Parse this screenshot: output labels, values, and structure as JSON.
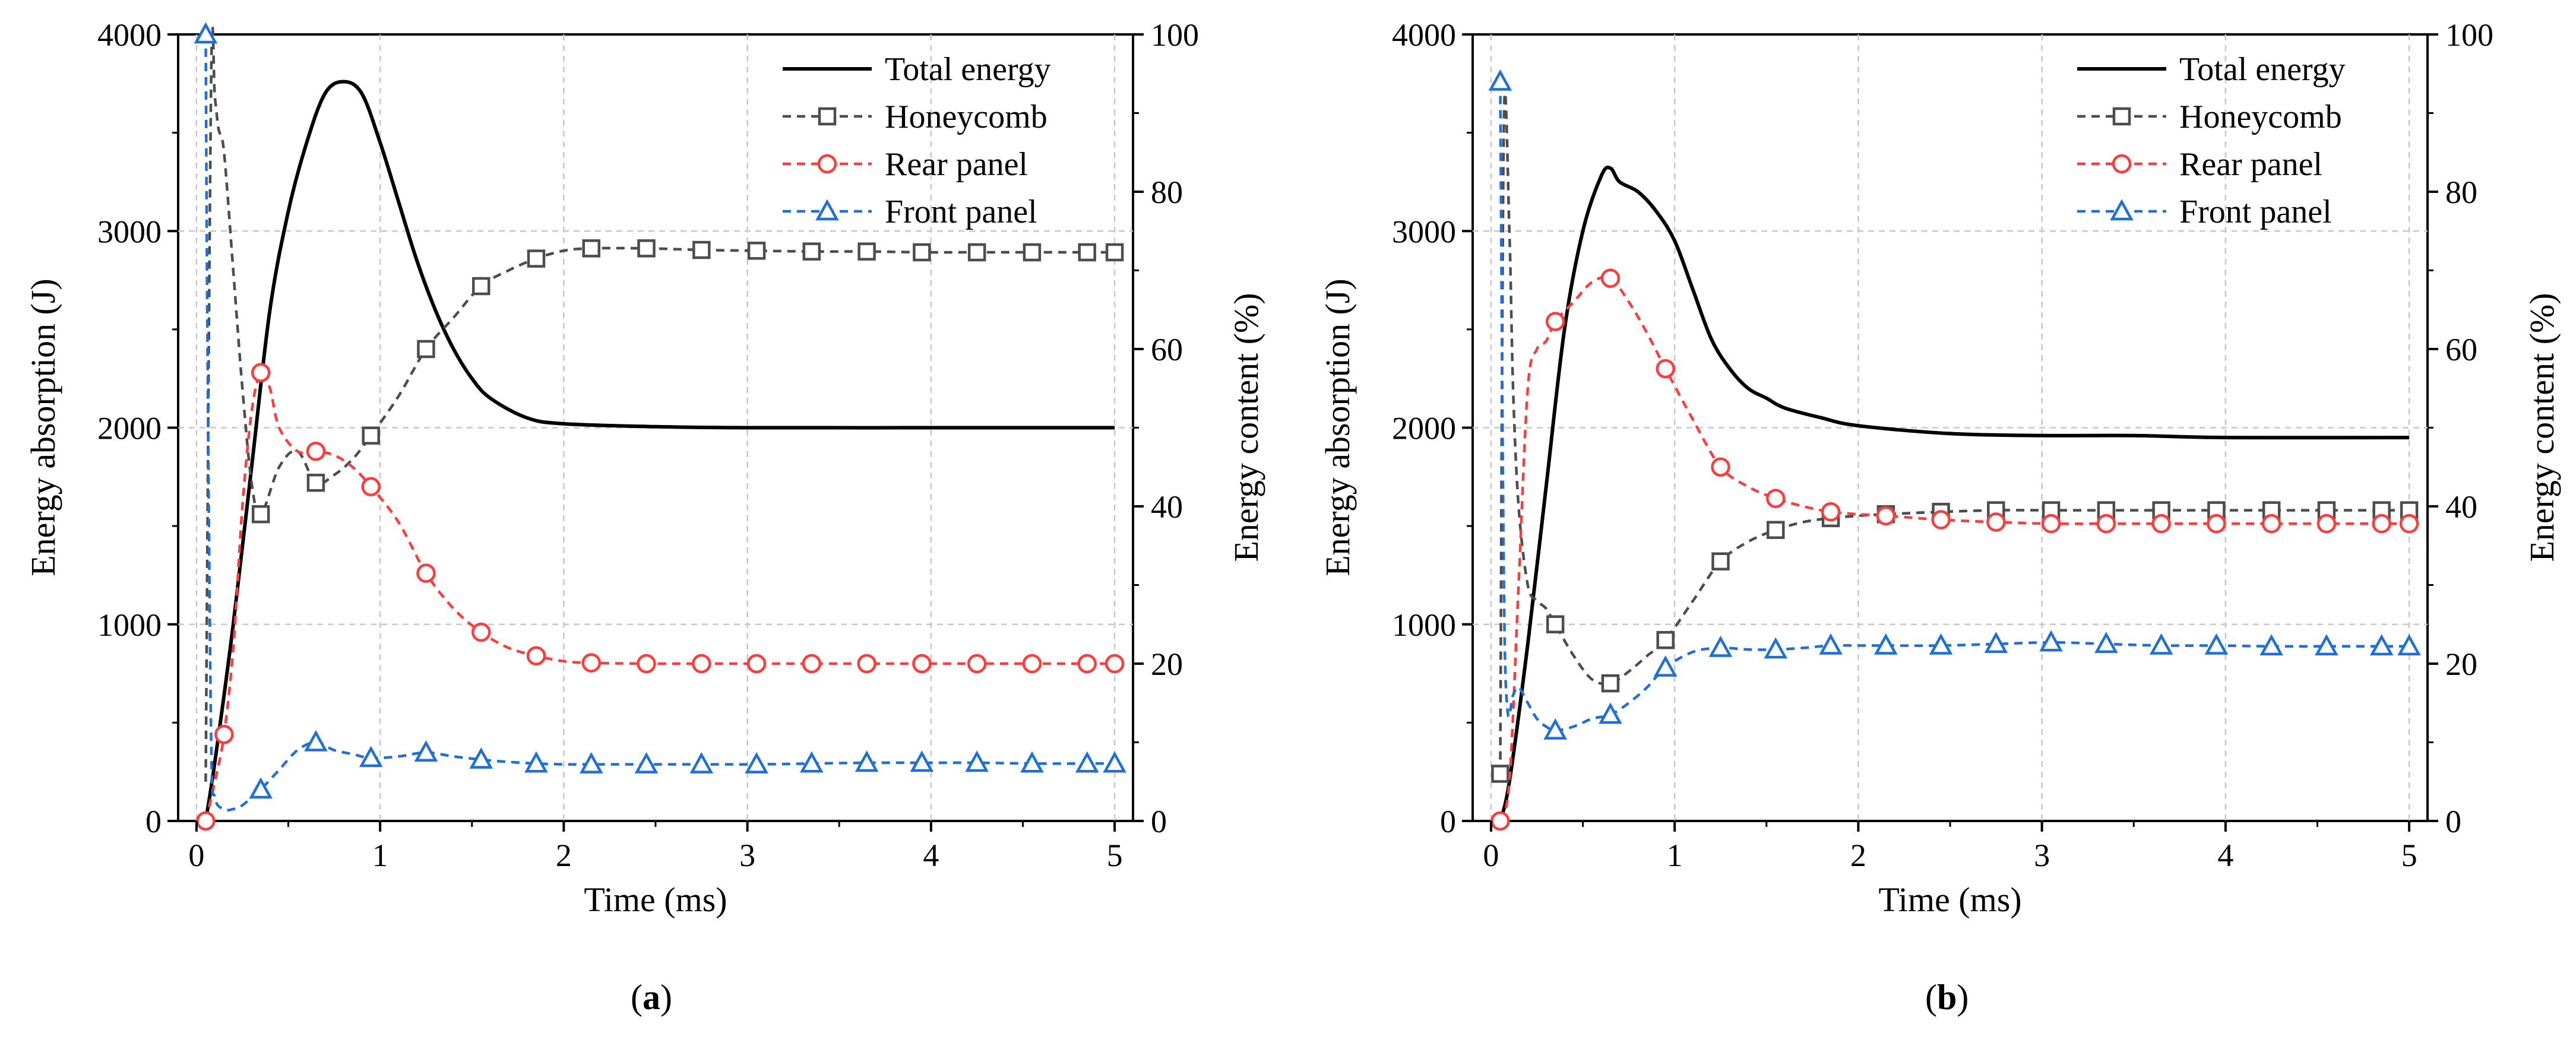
{
  "figure": {
    "panels": [
      {
        "label": "(a)",
        "label_letter": "a",
        "legend_position": "top-right"
      },
      {
        "label": "(b)",
        "label_letter": "b",
        "legend_position": "top-right"
      }
    ]
  },
  "colors": {
    "total": "#000000",
    "honeycomb": "#4d4d4d",
    "rear": "#ff3b3b",
    "front": "#1f6fd8",
    "grid": "#c8c8c8",
    "axis": "#000000"
  },
  "chart_data": [
    {
      "type": "line",
      "title": "",
      "xlabel": "Time (ms)",
      "ylabel": "Energy absorption (J)",
      "ylabel_right": "Energy content (%)",
      "xlim": [
        -0.1,
        5.1
      ],
      "ylim": [
        0,
        4000
      ],
      "ylim_right": [
        0,
        100
      ],
      "xticks": [
        "0",
        "1",
        "2",
        "3",
        "4",
        "5"
      ],
      "yticks": [
        "0",
        "1000",
        "2000",
        "3000",
        "4000"
      ],
      "yticks_right": [
        "0",
        "20",
        "40",
        "60",
        "80",
        "100"
      ],
      "grid": true,
      "legend": [
        "Total energy",
        "Honeycomb",
        "Rear panel",
        "Front panel"
      ],
      "series": [
        {
          "name": "Total energy",
          "axis": "left",
          "marker": "none",
          "style": "solid",
          "x": [
            0.05,
            0.1,
            0.2,
            0.3,
            0.4,
            0.5,
            0.6,
            0.7,
            0.8,
            0.9,
            1.0,
            1.1,
            1.2,
            1.3,
            1.4,
            1.5,
            1.6,
            1.8,
            2.0,
            2.5,
            3.0,
            4.0,
            5.0
          ],
          "y": [
            0,
            300,
            1000,
            1800,
            2600,
            3100,
            3450,
            3700,
            3760,
            3700,
            3450,
            3150,
            2850,
            2600,
            2400,
            2250,
            2150,
            2050,
            2020,
            2005,
            2000,
            2000,
            2000
          ]
        },
        {
          "name": "Honeycomb",
          "axis": "right",
          "marker": "square",
          "style": "dashed",
          "x": [
            0.05,
            0.08,
            0.1,
            0.12,
            0.15,
            0.2,
            0.25,
            0.3,
            0.35,
            0.45,
            0.55,
            0.65,
            0.75,
            0.85,
            0.95,
            1.1,
            1.25,
            1.4,
            1.55,
            1.7,
            1.85,
            2.0,
            2.15,
            2.45,
            2.75,
            3.05,
            3.35,
            3.65,
            3.95,
            4.25,
            4.55,
            4.85,
            5.0
          ],
          "y": [
            5,
            95,
            92,
            88,
            85,
            70,
            55,
            43,
            39,
            45,
            47,
            43,
            44,
            46,
            49,
            54,
            60,
            64,
            68,
            70,
            71.5,
            72.5,
            72.8,
            72.8,
            72.6,
            72.5,
            72.4,
            72.4,
            72.3,
            72.3,
            72.3,
            72.3,
            72.3
          ],
          "marker_x": [
            0.35,
            0.65,
            0.95,
            1.25,
            1.55,
            1.85,
            2.15,
            2.45,
            2.75,
            3.05,
            3.35,
            3.65,
            3.95,
            4.25,
            4.55,
            4.85,
            5.0
          ],
          "marker_y": [
            39,
            43,
            49,
            60,
            68,
            71.5,
            72.8,
            72.8,
            72.6,
            72.5,
            72.4,
            72.4,
            72.3,
            72.3,
            72.3,
            72.3,
            72.3
          ]
        },
        {
          "name": "Rear panel",
          "axis": "right",
          "marker": "circle",
          "style": "dashed",
          "x": [
            0.05,
            0.1,
            0.15,
            0.2,
            0.25,
            0.3,
            0.35,
            0.4,
            0.45,
            0.55,
            0.65,
            0.75,
            0.85,
            0.95,
            1.1,
            1.25,
            1.4,
            1.55,
            1.7,
            1.85,
            2.0,
            2.15,
            2.45,
            2.75,
            3.05,
            3.35,
            3.65,
            3.95,
            4.25,
            4.55,
            4.85,
            5.0
          ],
          "y": [
            0,
            5,
            11,
            22,
            40,
            52,
            57,
            55,
            50,
            47,
            47,
            46.5,
            45,
            42.5,
            38,
            31.5,
            27,
            24,
            22,
            21,
            20.3,
            20.1,
            20,
            20,
            20,
            20,
            20,
            20,
            20,
            20,
            20,
            20
          ],
          "marker_x": [
            0.05,
            0.15,
            0.35,
            0.65,
            0.95,
            1.25,
            1.55,
            1.85,
            2.15,
            2.45,
            2.75,
            3.05,
            3.35,
            3.65,
            3.95,
            4.25,
            4.55,
            4.85,
            5.0
          ],
          "marker_y": [
            0,
            11,
            57,
            47,
            42.5,
            31.5,
            24,
            21,
            20.1,
            20,
            20,
            20,
            20,
            20,
            20,
            20,
            20,
            20,
            20
          ]
        },
        {
          "name": "Front panel",
          "axis": "right",
          "marker": "triangle",
          "style": "dashed",
          "x": [
            0.05,
            0.06,
            0.08,
            0.1,
            0.15,
            0.2,
            0.25,
            0.3,
            0.35,
            0.45,
            0.55,
            0.65,
            0.75,
            0.85,
            0.95,
            1.1,
            1.25,
            1.4,
            1.55,
            1.7,
            1.85,
            2.0,
            2.15,
            2.45,
            2.75,
            3.05,
            3.35,
            3.65,
            3.95,
            4.25,
            4.55,
            4.85,
            5.0
          ],
          "y": [
            100,
            60,
            10,
            3,
            1.5,
            1.5,
            2,
            3,
            4,
            6.5,
            9,
            10,
            9,
            8.5,
            8,
            8.2,
            8.7,
            8.2,
            7.8,
            7.5,
            7.3,
            7.2,
            7.2,
            7.2,
            7.2,
            7.2,
            7.3,
            7.4,
            7.4,
            7.4,
            7.3,
            7.3,
            7.3
          ],
          "marker_x": [
            0.05,
            0.35,
            0.65,
            0.95,
            1.25,
            1.55,
            1.85,
            2.15,
            2.45,
            2.75,
            3.05,
            3.35,
            3.65,
            3.95,
            4.25,
            4.55,
            4.85,
            5.0
          ],
          "marker_y": [
            100,
            4,
            10,
            8,
            8.7,
            7.8,
            7.3,
            7.2,
            7.2,
            7.2,
            7.2,
            7.3,
            7.4,
            7.4,
            7.4,
            7.3,
            7.3,
            7.3
          ]
        }
      ]
    },
    {
      "type": "line",
      "title": "",
      "xlabel": "Time (ms)",
      "ylabel": "Energy absorption (J)",
      "ylabel_right": "Energy content (%)",
      "xlim": [
        -0.1,
        5.1
      ],
      "ylim": [
        0,
        4000
      ],
      "ylim_right": [
        0,
        100
      ],
      "xticks": [
        "0",
        "1",
        "2",
        "3",
        "4",
        "5"
      ],
      "yticks": [
        "0",
        "1000",
        "2000",
        "3000",
        "4000"
      ],
      "yticks_right": [
        "0",
        "20",
        "40",
        "60",
        "80",
        "100"
      ],
      "grid": true,
      "legend": [
        "Total energy",
        "Honeycomb",
        "Rear panel",
        "Front panel"
      ],
      "series": [
        {
          "name": "Total energy",
          "axis": "left",
          "marker": "none",
          "style": "solid",
          "x": [
            0.05,
            0.1,
            0.2,
            0.3,
            0.4,
            0.5,
            0.6,
            0.65,
            0.7,
            0.8,
            0.9,
            1.0,
            1.1,
            1.2,
            1.3,
            1.4,
            1.5,
            1.6,
            1.8,
            2.0,
            2.5,
            3.0,
            3.5,
            4.0,
            5.0
          ],
          "y": [
            0,
            200,
            900,
            1700,
            2500,
            3000,
            3280,
            3320,
            3250,
            3200,
            3100,
            2950,
            2700,
            2450,
            2300,
            2200,
            2150,
            2100,
            2050,
            2010,
            1970,
            1960,
            1960,
            1950,
            1950
          ]
        },
        {
          "name": "Honeycomb",
          "axis": "right",
          "marker": "square",
          "style": "dashed",
          "x": [
            0.05,
            0.07,
            0.1,
            0.12,
            0.15,
            0.2,
            0.25,
            0.3,
            0.35,
            0.45,
            0.55,
            0.65,
            0.75,
            0.85,
            0.95,
            1.1,
            1.25,
            1.4,
            1.55,
            1.7,
            1.85,
            2.0,
            2.15,
            2.45,
            2.75,
            3.05,
            3.35,
            3.65,
            3.95,
            4.25,
            4.55,
            4.85,
            5.0
          ],
          "y": [
            6,
            89,
            75,
            55,
            40,
            30,
            28,
            27,
            25,
            21,
            18,
            17.5,
            19,
            21,
            23,
            28,
            33,
            35.5,
            37,
            38,
            38.5,
            38.8,
            39,
            39.3,
            39.5,
            39.5,
            39.5,
            39.5,
            39.5,
            39.5,
            39.5,
            39.5,
            39.5
          ],
          "marker_x": [
            0.05,
            0.35,
            0.65,
            0.95,
            1.25,
            1.55,
            1.85,
            2.15,
            2.45,
            2.75,
            3.05,
            3.35,
            3.65,
            3.95,
            4.25,
            4.55,
            4.85,
            5.0
          ],
          "marker_y": [
            6,
            25,
            17.5,
            23,
            33,
            37,
            38.5,
            39,
            39.3,
            39.5,
            39.5,
            39.5,
            39.5,
            39.5,
            39.5,
            39.5,
            39.5,
            39.5
          ]
        },
        {
          "name": "Rear panel",
          "axis": "right",
          "marker": "circle",
          "style": "dashed",
          "x": [
            0.05,
            0.1,
            0.15,
            0.2,
            0.25,
            0.3,
            0.35,
            0.45,
            0.55,
            0.65,
            0.75,
            0.85,
            0.95,
            1.1,
            1.25,
            1.4,
            1.55,
            1.7,
            1.85,
            2.0,
            2.15,
            2.45,
            2.75,
            3.05,
            3.35,
            3.65,
            3.95,
            4.25,
            4.55,
            4.85,
            5.0
          ],
          "y": [
            0,
            5,
            30,
            55,
            60,
            61,
            63.5,
            66,
            68.5,
            69,
            66,
            62,
            57.5,
            51,
            45,
            42.5,
            41,
            40,
            39.3,
            39,
            38.8,
            38.3,
            38,
            37.8,
            37.8,
            37.8,
            37.8,
            37.8,
            37.8,
            37.8,
            37.8
          ],
          "marker_x": [
            0.05,
            0.35,
            0.65,
            0.95,
            1.25,
            1.55,
            1.85,
            2.15,
            2.45,
            2.75,
            3.05,
            3.35,
            3.65,
            3.95,
            4.25,
            4.55,
            4.85,
            5.0
          ],
          "marker_y": [
            0,
            63.5,
            69,
            57.5,
            45,
            41,
            39.3,
            38.8,
            38.3,
            38,
            37.8,
            37.8,
            37.8,
            37.8,
            37.8,
            37.8,
            37.8,
            37.8
          ]
        },
        {
          "name": "Front panel",
          "axis": "right",
          "marker": "triangle",
          "style": "dashed",
          "x": [
            0.05,
            0.07,
            0.09,
            0.12,
            0.15,
            0.2,
            0.25,
            0.3,
            0.35,
            0.45,
            0.55,
            0.65,
            0.75,
            0.85,
            0.95,
            1.1,
            1.25,
            1.4,
            1.55,
            1.7,
            1.85,
            2.0,
            2.15,
            2.45,
            2.75,
            3.05,
            3.35,
            3.65,
            3.95,
            4.25,
            4.55,
            4.85,
            5.0
          ],
          "y": [
            94,
            30,
            14,
            16,
            17,
            15,
            13,
            12,
            11.5,
            12,
            13,
            13.5,
            15,
            17,
            19.5,
            21.5,
            22,
            21.8,
            21.8,
            22,
            22.3,
            22.3,
            22.3,
            22.3,
            22.5,
            22.7,
            22.5,
            22.3,
            22.3,
            22.2,
            22.2,
            22.2,
            22.2
          ],
          "marker_x": [
            0.05,
            0.35,
            0.65,
            0.95,
            1.25,
            1.55,
            1.85,
            2.15,
            2.45,
            2.75,
            3.05,
            3.35,
            3.65,
            3.95,
            4.25,
            4.55,
            4.85,
            5.0
          ],
          "marker_y": [
            94,
            11.5,
            13.5,
            19.5,
            22,
            21.8,
            22.3,
            22.3,
            22.3,
            22.5,
            22.7,
            22.5,
            22.3,
            22.3,
            22.2,
            22.2,
            22.2,
            22.2
          ]
        }
      ]
    }
  ]
}
